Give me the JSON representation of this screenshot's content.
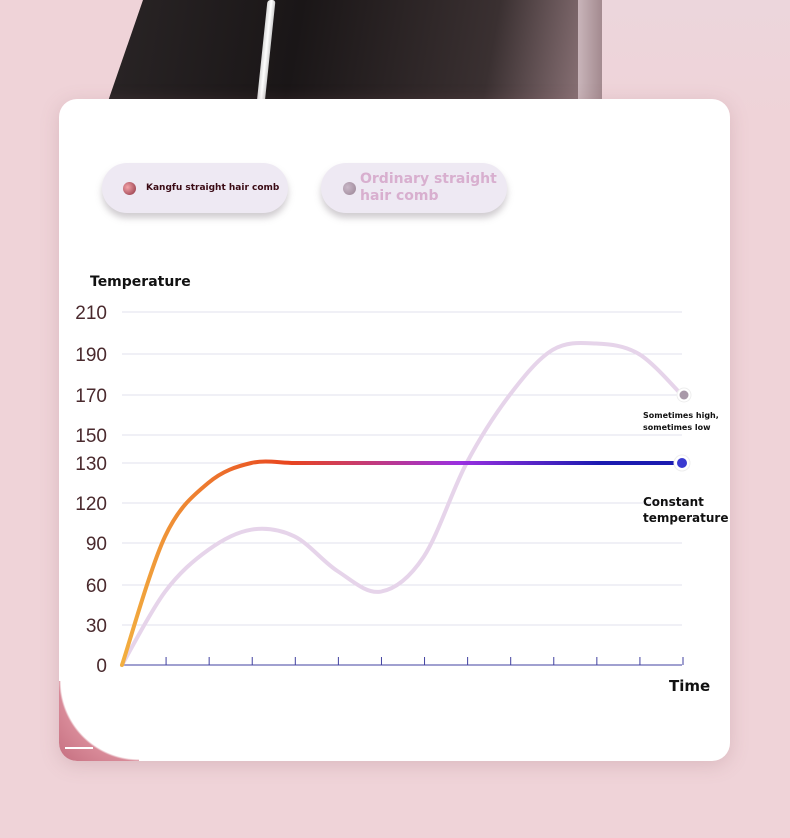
{
  "legend": [
    {
      "label": "Kangfu straight hair comb",
      "color": "#8a3040"
    },
    {
      "label_line1": "Ordinary straight",
      "label_line2": "hair comb",
      "color": "#9a8494"
    }
  ],
  "chart_data": {
    "type": "line",
    "ylabel": "Temperature",
    "xlabel": "Time",
    "y_ticks": [
      0,
      30,
      60,
      90,
      120,
      130,
      150,
      170,
      190,
      210
    ],
    "x_tick_count": 14,
    "grid": true,
    "series": [
      {
        "name": "Kangfu straight hair comb",
        "annotation": "Constant temperature",
        "x": [
          0,
          1,
          2,
          3,
          4,
          5,
          6,
          7,
          8,
          9,
          10,
          11,
          12,
          13
        ],
        "values": [
          0,
          95,
          125,
          130,
          130,
          130,
          130,
          130,
          130,
          130,
          130,
          130,
          130,
          130
        ],
        "colors": [
          "#f2b040",
          "#e8441e",
          "#9a30e0",
          "#1a1ab0"
        ]
      },
      {
        "name": "Ordinary straight hair comb",
        "annotation_line1": "Sometimes high,",
        "annotation_line2": "sometimes low",
        "x": [
          0,
          1,
          2,
          3,
          4,
          5,
          6,
          7,
          8,
          9,
          10,
          11,
          12,
          13
        ],
        "values": [
          0,
          55,
          85,
          100,
          95,
          70,
          55,
          80,
          130,
          170,
          192,
          195,
          190,
          170
        ],
        "color": "#e6d4ea"
      }
    ]
  }
}
